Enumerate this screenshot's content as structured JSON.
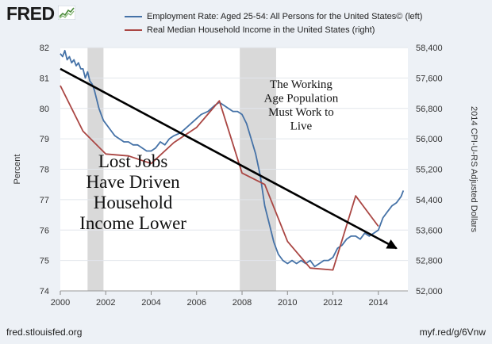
{
  "logo": {
    "text": "FRED"
  },
  "footer": {
    "left": "fred.stlouisfed.org",
    "right": "myf.red/g/6Vnw"
  },
  "colors": {
    "employment": "#4572a7",
    "income": "#aa4643",
    "recession": "#d9d9d9",
    "trend": "#000000",
    "plot_bg": "#ffffff"
  },
  "chart_data": {
    "type": "line",
    "legend_position": "top",
    "series": [
      {
        "name": "Employment Rate: Aged 25-54: All Persons for the United States© (left)",
        "axis": "left",
        "x": [
          2000.0,
          2000.1,
          2000.2,
          2000.3,
          2000.4,
          2000.5,
          2000.6,
          2000.7,
          2000.8,
          2000.9,
          2001.0,
          2001.1,
          2001.2,
          2001.3,
          2001.4,
          2001.5,
          2001.6,
          2001.7,
          2001.8,
          2001.9,
          2002.0,
          2002.2,
          2002.4,
          2002.6,
          2002.8,
          2003.0,
          2003.2,
          2003.4,
          2003.6,
          2003.8,
          2004.0,
          2004.2,
          2004.4,
          2004.6,
          2004.8,
          2005.0,
          2005.3,
          2005.6,
          2005.9,
          2006.2,
          2006.5,
          2006.8,
          2007.0,
          2007.2,
          2007.4,
          2007.6,
          2007.8,
          2008.0,
          2008.2,
          2008.4,
          2008.6,
          2008.8,
          2009.0,
          2009.2,
          2009.4,
          2009.6,
          2009.8,
          2010.0,
          2010.2,
          2010.4,
          2010.6,
          2010.8,
          2011.0,
          2011.2,
          2011.4,
          2011.6,
          2011.8,
          2012.0,
          2012.2,
          2012.4,
          2012.6,
          2012.8,
          2013.0,
          2013.2,
          2013.4,
          2013.6,
          2013.8,
          2014.0,
          2014.2,
          2014.4,
          2014.6,
          2014.8,
          2015.0,
          2015.1
        ],
        "y": [
          81.8,
          81.7,
          81.9,
          81.6,
          81.7,
          81.5,
          81.6,
          81.4,
          81.5,
          81.3,
          81.3,
          81.0,
          81.2,
          80.9,
          80.8,
          80.6,
          80.3,
          80.0,
          79.8,
          79.6,
          79.5,
          79.3,
          79.1,
          79.0,
          78.9,
          78.9,
          78.8,
          78.8,
          78.7,
          78.6,
          78.6,
          78.7,
          78.9,
          78.8,
          79.0,
          79.1,
          79.2,
          79.4,
          79.6,
          79.8,
          79.9,
          80.1,
          80.2,
          80.1,
          80.0,
          79.9,
          79.9,
          79.8,
          79.5,
          79.0,
          78.5,
          77.8,
          76.8,
          76.2,
          75.6,
          75.2,
          75.0,
          74.9,
          75.0,
          74.9,
          75.0,
          74.9,
          75.0,
          74.8,
          74.9,
          75.0,
          75.0,
          75.1,
          75.4,
          75.5,
          75.7,
          75.8,
          75.8,
          75.7,
          75.9,
          75.8,
          75.9,
          76.0,
          76.4,
          76.6,
          76.8,
          76.9,
          77.1,
          77.3
        ]
      },
      {
        "name": "Real Median Household Income in the United States (right)",
        "axis": "right",
        "x": [
          2000,
          2001,
          2002,
          2003,
          2004,
          2005,
          2006,
          2007,
          2008,
          2009,
          2010,
          2011,
          2012,
          2013,
          2014
        ],
        "y": [
          57400,
          56200,
          55600,
          55550,
          55350,
          55900,
          56300,
          57000,
          55100,
          54800,
          53300,
          52600,
          52550,
          54500,
          53700
        ]
      }
    ],
    "recessions": [
      [
        2001.2,
        2001.9
      ],
      [
        2007.9,
        2009.5
      ]
    ],
    "trend_arrow": {
      "from": [
        2000.0,
        81.3
      ],
      "to": [
        2014.8,
        75.4
      ]
    },
    "annotations": [
      {
        "lines": [
          "Lost Jobs",
          "Have Driven",
          "Household",
          "Income Lower"
        ],
        "x": 2003.2,
        "y": 76.5,
        "size": "large"
      },
      {
        "lines": [
          "The Working",
          "Age Population",
          "Must Work to",
          "Live"
        ],
        "x": 2010.6,
        "y": 80.0,
        "size": "small"
      }
    ],
    "x_axis": {
      "range": [
        2000,
        2015.3
      ],
      "ticks": [
        2000,
        2002,
        2004,
        2006,
        2008,
        2010,
        2012,
        2014
      ]
    },
    "y_left": {
      "label": "Percent",
      "range": [
        74,
        82
      ],
      "ticks": [
        74,
        75,
        76,
        77,
        78,
        79,
        80,
        81,
        82
      ]
    },
    "y_right": {
      "label": "2014 CPI-U-RS Adjusted Dollars",
      "range": [
        52000,
        58400
      ],
      "ticks": [
        52000,
        52800,
        53600,
        54400,
        55200,
        56000,
        56800,
        57600,
        58400
      ],
      "tick_labels": [
        "52,000",
        "52,800",
        "53,600",
        "54,400",
        "55,200",
        "56,000",
        "56,800",
        "57,600",
        "58,400"
      ]
    },
    "grid": true
  }
}
